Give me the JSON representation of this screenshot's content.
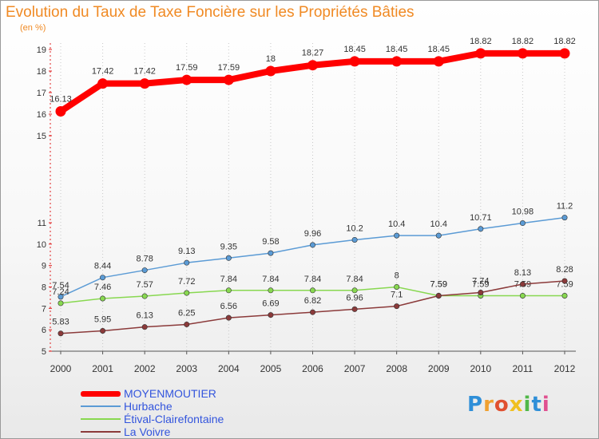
{
  "header": {
    "title": "Evolution du Taux de Taxe Foncière sur les Propriétés Bâties",
    "unit": "(en %)"
  },
  "logo": {
    "letters": [
      {
        "ch": "P",
        "color": "#2f8fd8"
      },
      {
        "ch": "r",
        "color": "#f0a030"
      },
      {
        "ch": "o",
        "color": "#e05030"
      },
      {
        "ch": "x",
        "color": "#f0c020"
      },
      {
        "ch": "i",
        "color": "#50b848"
      },
      {
        "ch": "t",
        "color": "#2f8fd8"
      },
      {
        "ch": "i",
        "color": "#e05090"
      }
    ]
  },
  "chart_data": {
    "type": "line",
    "title": "Evolution du Taux de Taxe Foncière sur les Propriétés Bâties",
    "ylabel": "(en %)",
    "x": [
      "2000",
      "2001",
      "2002",
      "2003",
      "2004",
      "2005",
      "2006",
      "2007",
      "2008",
      "2009",
      "2010",
      "2011",
      "2012"
    ],
    "ylim": [
      5,
      19
    ],
    "yticks": [
      5,
      6,
      7,
      8,
      9,
      10,
      11,
      15,
      16,
      17,
      18,
      19
    ],
    "ytick_labels": [
      "5",
      "6",
      "7",
      "8",
      "9",
      "10",
      "11",
      "15",
      "16",
      "17",
      "18",
      "19"
    ],
    "axis_break": {
      "from": 11,
      "to": 15
    },
    "grid": "vertical dotted",
    "legend_position": "bottom-left",
    "series": [
      {
        "name": "MOYENMOUTIER",
        "color": "#ff0000",
        "values": [
          16.13,
          17.42,
          17.42,
          17.59,
          17.59,
          18,
          18.27,
          18.45,
          18.45,
          18.45,
          18.82,
          18.82,
          18.82
        ],
        "labels": [
          "16.13",
          "17.42",
          "17.42",
          "17.59",
          "17.59",
          "18",
          "18.27",
          "18.45",
          "18.45",
          "18.45",
          "18.82",
          "18.82",
          "18.82"
        ]
      },
      {
        "name": "Hurbache",
        "color": "#5b9bd5",
        "values": [
          7.54,
          8.44,
          8.78,
          9.13,
          9.35,
          9.58,
          9.96,
          10.2,
          10.4,
          10.4,
          10.71,
          10.98,
          11.2
        ],
        "labels": [
          "7.54",
          "8.44",
          "8.78",
          "9.13",
          "9.35",
          "9.58",
          "9.96",
          "10.2",
          "10.4",
          "10.4",
          "10.71",
          "10.98",
          "11.2"
        ]
      },
      {
        "name": "Étival-Clairefontaine",
        "color": "#88d850",
        "values": [
          7.24,
          7.46,
          7.57,
          7.72,
          7.84,
          7.84,
          7.84,
          7.84,
          8,
          7.59,
          7.59,
          7.59,
          7.59
        ],
        "labels": [
          "7.24",
          "7.46",
          "7.57",
          "7.72",
          "7.84",
          "7.84",
          "7.84",
          "7.84",
          "8",
          "7.59",
          "7.59",
          "7.59",
          "7.59"
        ]
      },
      {
        "name": "La Voivre",
        "color": "#8b3a3a",
        "values": [
          5.83,
          5.95,
          6.13,
          6.25,
          6.56,
          6.69,
          6.82,
          6.96,
          7.1,
          7.59,
          7.74,
          8.13,
          8.28
        ],
        "labels": [
          "5.83",
          "5.95",
          "6.13",
          "6.25",
          "6.56",
          "6.69",
          "6.82",
          "6.96",
          "7.1",
          "7.59",
          "7.74",
          "8.13",
          "8.28"
        ]
      }
    ]
  }
}
